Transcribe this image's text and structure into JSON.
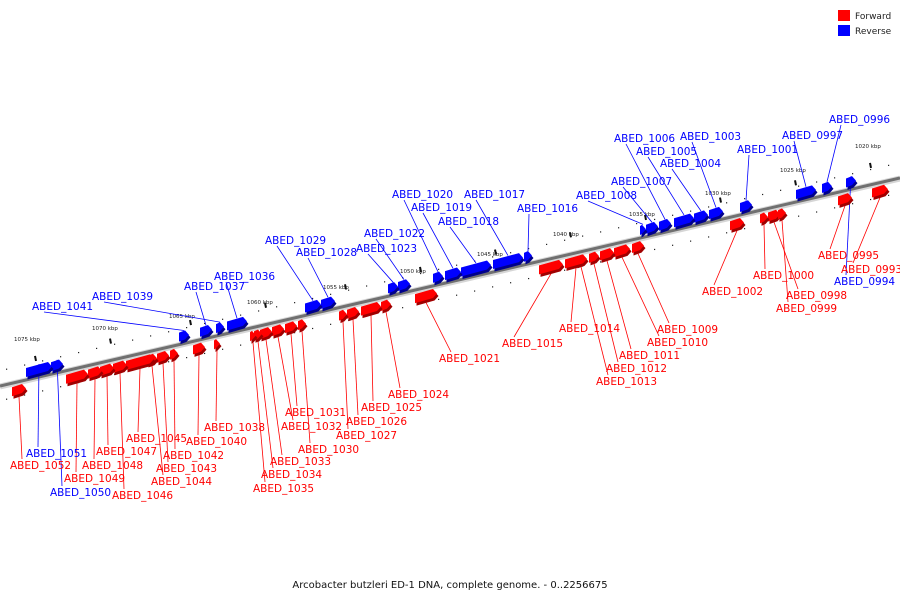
{
  "caption": "Arcobacter butzleri ED-1 DNA, complete genome. - 0..2256675",
  "legend": [
    {
      "label": "Forward",
      "color": "#ff0000"
    },
    {
      "label": "Reverse",
      "color": "#0000ff"
    }
  ],
  "colors": {
    "forward": "#ff0000",
    "reverse": "#0000ff",
    "backbone": "#8a8a8a"
  },
  "kbp_labels": [
    "1020 kbp",
    "1025 kbp",
    "1030 kbp",
    "1035 kbp",
    "1040 kbp",
    "1045 kbp",
    "1050 kbp",
    "1055 kbp",
    "1060 kbp",
    "1065 kbp",
    "1070 kbp",
    "1075 kbp"
  ],
  "genes": [
    {
      "id": "ABED_0993",
      "strand": "forward"
    },
    {
      "id": "ABED_0994",
      "strand": "reverse"
    },
    {
      "id": "ABED_0995",
      "strand": "forward"
    },
    {
      "id": "ABED_0996",
      "strand": "reverse"
    },
    {
      "id": "ABED_0997",
      "strand": "reverse"
    },
    {
      "id": "ABED_0998",
      "strand": "forward"
    },
    {
      "id": "ABED_0999",
      "strand": "forward"
    },
    {
      "id": "ABED_1000",
      "strand": "forward"
    },
    {
      "id": "ABED_1001",
      "strand": "reverse"
    },
    {
      "id": "ABED_1002",
      "strand": "forward"
    },
    {
      "id": "ABED_1003",
      "strand": "reverse"
    },
    {
      "id": "ABED_1004",
      "strand": "reverse"
    },
    {
      "id": "ABED_1005",
      "strand": "reverse"
    },
    {
      "id": "ABED_1006",
      "strand": "reverse"
    },
    {
      "id": "ABED_1007",
      "strand": "reverse"
    },
    {
      "id": "ABED_1008",
      "strand": "reverse"
    },
    {
      "id": "ABED_1009",
      "strand": "forward"
    },
    {
      "id": "ABED_1010",
      "strand": "forward"
    },
    {
      "id": "ABED_1011",
      "strand": "forward"
    },
    {
      "id": "ABED_1012",
      "strand": "forward"
    },
    {
      "id": "ABED_1013",
      "strand": "forward"
    },
    {
      "id": "ABED_1014",
      "strand": "forward"
    },
    {
      "id": "ABED_1015",
      "strand": "forward"
    },
    {
      "id": "ABED_1016",
      "strand": "reverse"
    },
    {
      "id": "ABED_1017",
      "strand": "reverse"
    },
    {
      "id": "ABED_1018",
      "strand": "reverse"
    },
    {
      "id": "ABED_1019",
      "strand": "reverse"
    },
    {
      "id": "ABED_1020",
      "strand": "reverse"
    },
    {
      "id": "ABED_1021",
      "strand": "forward"
    },
    {
      "id": "ABED_1022",
      "strand": "reverse"
    },
    {
      "id": "ABED_1023",
      "strand": "reverse"
    },
    {
      "id": "ABED_1024",
      "strand": "forward"
    },
    {
      "id": "ABED_1025",
      "strand": "forward"
    },
    {
      "id": "ABED_1026",
      "strand": "forward"
    },
    {
      "id": "ABED_1027",
      "strand": "forward"
    },
    {
      "id": "ABED_1028",
      "strand": "reverse"
    },
    {
      "id": "ABED_1029",
      "strand": "reverse"
    },
    {
      "id": "ABED_1030",
      "strand": "forward"
    },
    {
      "id": "ABED_1031",
      "strand": "forward"
    },
    {
      "id": "ABED_1032",
      "strand": "forward"
    },
    {
      "id": "ABED_1033",
      "strand": "forward"
    },
    {
      "id": "ABED_1034",
      "strand": "forward"
    },
    {
      "id": "ABED_1035",
      "strand": "forward"
    },
    {
      "id": "ABED_1036",
      "strand": "reverse"
    },
    {
      "id": "ABED_1037",
      "strand": "reverse"
    },
    {
      "id": "ABED_1038",
      "strand": "forward"
    },
    {
      "id": "ABED_1039",
      "strand": "reverse"
    },
    {
      "id": "ABED_1040",
      "strand": "forward"
    },
    {
      "id": "ABED_1041",
      "strand": "reverse"
    },
    {
      "id": "ABED_1042",
      "strand": "forward"
    },
    {
      "id": "ABED_1043",
      "strand": "forward"
    },
    {
      "id": "ABED_1044",
      "strand": "forward"
    },
    {
      "id": "ABED_1045",
      "strand": "forward"
    },
    {
      "id": "ABED_1046",
      "strand": "forward"
    },
    {
      "id": "ABED_1047",
      "strand": "forward"
    },
    {
      "id": "ABED_1048",
      "strand": "forward"
    },
    {
      "id": "ABED_1049",
      "strand": "forward"
    },
    {
      "id": "ABED_1050",
      "strand": "reverse"
    },
    {
      "id": "ABED_1051",
      "strand": "reverse"
    },
    {
      "id": "ABED_1052",
      "strand": "forward"
    }
  ]
}
